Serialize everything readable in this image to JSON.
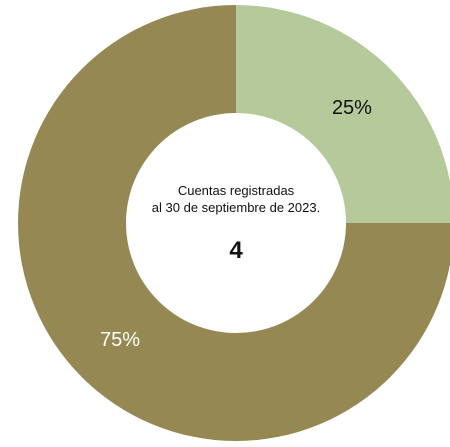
{
  "chart_data": {
    "type": "pie",
    "variant": "donut",
    "categories": [
      "",
      ""
    ],
    "values": [
      25,
      75
    ],
    "labels": [
      "25%",
      "75%"
    ],
    "colors": [
      "#b5c99a",
      "#968853"
    ],
    "label_colors": [
      "#111111",
      "#ffffff"
    ],
    "center": {
      "caption_line1": "Cuentas registradas",
      "caption_line2": "al 30 de septiembre de 2023.",
      "total": "4"
    },
    "legend": "none",
    "title": ""
  }
}
